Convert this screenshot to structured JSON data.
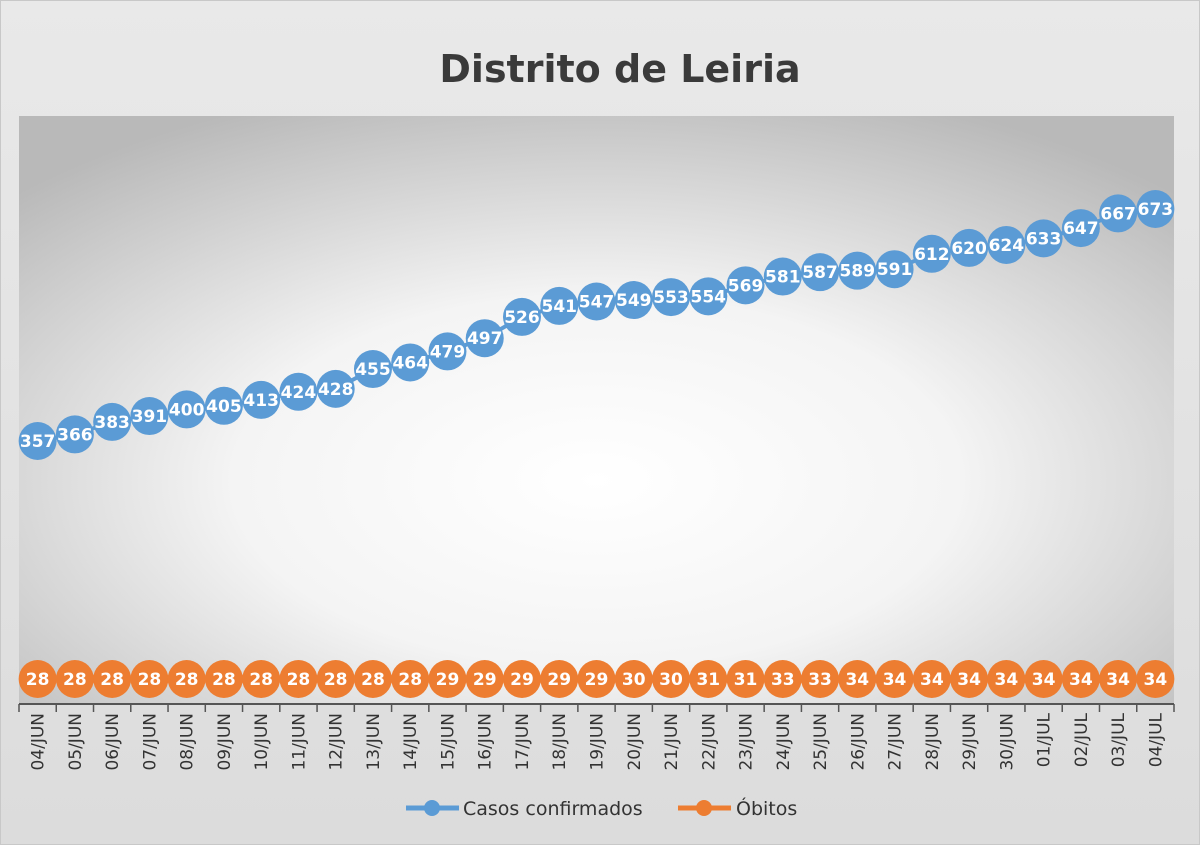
{
  "chart_data": {
    "type": "line",
    "title": "Distrito de Leiria",
    "categories": [
      "04/JUN",
      "05/JUN",
      "06/JUN",
      "07/JUN",
      "08/JUN",
      "09/JUN",
      "10/JUN",
      "11/JUN",
      "12/JUN",
      "13/JUN",
      "14/JUN",
      "15/JUN",
      "16/JUN",
      "17/JUN",
      "18/JUN",
      "19/JUN",
      "20/JUN",
      "21/JUN",
      "22/JUN",
      "23/JUN",
      "24/JUN",
      "25/JUN",
      "26/JUN",
      "27/JUN",
      "28/JUN",
      "29/JUN",
      "30/JUN",
      "01/JUL",
      "02/JUL",
      "03/JUL",
      "04/JUL"
    ],
    "series": [
      {
        "name": "Casos confirmados",
        "color": "#5b9bd5",
        "values": [
          357,
          366,
          383,
          391,
          400,
          405,
          413,
          424,
          428,
          455,
          464,
          479,
          497,
          526,
          541,
          547,
          549,
          553,
          554,
          569,
          581,
          587,
          589,
          591,
          612,
          620,
          624,
          633,
          647,
          667,
          673
        ]
      },
      {
        "name": "Óbitos",
        "color": "#ed7d31",
        "values": [
          28,
          28,
          28,
          28,
          28,
          28,
          28,
          28,
          28,
          28,
          28,
          29,
          29,
          29,
          29,
          29,
          30,
          30,
          31,
          31,
          33,
          33,
          34,
          34,
          34,
          34,
          34,
          34,
          34,
          34,
          34
        ]
      }
    ],
    "ylim": [
      0,
      800
    ],
    "grid": false,
    "legend_position": "bottom",
    "data_labels": true
  }
}
